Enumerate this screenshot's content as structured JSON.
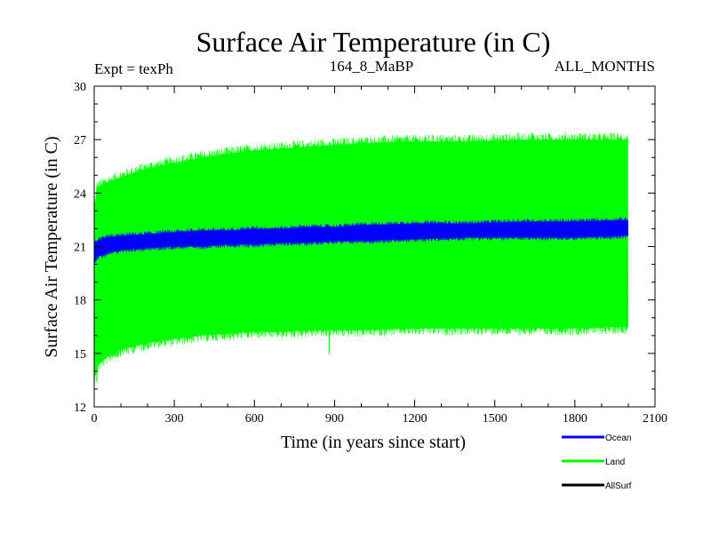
{
  "chart_data": {
    "type": "line",
    "title": "Surface Air Temperature (in C)",
    "subtitle_left": "Expt = texPh",
    "subtitle_center": "164_8_MaBP",
    "subtitle_right": "ALL_MONTHS",
    "xlabel": "Time (in years since start)",
    "ylabel": "Surface Air Temperature (in C)",
    "xlim": [
      0,
      2100
    ],
    "ylim": [
      12,
      30
    ],
    "x_ticks": [
      "0",
      "300",
      "600",
      "900",
      "1200",
      "1500",
      "1800",
      "2100"
    ],
    "y_ticks": [
      "12",
      "15",
      "18",
      "21",
      "24",
      "27",
      "30"
    ],
    "colors": {
      "Ocean": "#0000ff",
      "Land": "#00ff00",
      "AllSurf": "#000000"
    },
    "series": [
      {
        "name": "Land",
        "kind": "band",
        "x": [
          0,
          10,
          50,
          100,
          200,
          300,
          400,
          500,
          600,
          700,
          800,
          900,
          1000,
          1200,
          1400,
          1600,
          1800,
          2000
        ],
        "upper": [
          23.0,
          24.3,
          24.6,
          24.9,
          25.4,
          25.7,
          26.0,
          26.2,
          26.4,
          26.5,
          26.6,
          26.7,
          26.8,
          26.9,
          26.9,
          27.0,
          27.0,
          27.0
        ],
        "lower": [
          13.8,
          14.3,
          14.8,
          15.2,
          15.6,
          15.8,
          16.0,
          16.1,
          16.2,
          16.2,
          16.3,
          16.3,
          16.3,
          16.4,
          16.4,
          16.4,
          16.4,
          16.5
        ],
        "peak_upper": 27.4,
        "peak_lower": 13.4
      },
      {
        "name": "Ocean",
        "kind": "band",
        "x": [
          0,
          10,
          50,
          100,
          200,
          300,
          400,
          500,
          600,
          700,
          800,
          900,
          1000,
          1200,
          1400,
          1600,
          1800,
          2000
        ],
        "upper": [
          21.2,
          21.3,
          21.5,
          21.6,
          21.7,
          21.8,
          21.9,
          21.9,
          22.0,
          22.0,
          22.1,
          22.1,
          22.2,
          22.3,
          22.3,
          22.4,
          22.4,
          22.5
        ],
        "lower": [
          20.0,
          20.4,
          20.6,
          20.8,
          20.9,
          21.0,
          21.0,
          21.1,
          21.1,
          21.2,
          21.2,
          21.3,
          21.3,
          21.4,
          21.5,
          21.5,
          21.5,
          21.6
        ]
      },
      {
        "name": "AllSurf",
        "kind": "line",
        "x": [],
        "values": []
      }
    ],
    "legend": [
      {
        "name": "Ocean",
        "label": "Ocean"
      },
      {
        "name": "Land",
        "label": "Land"
      },
      {
        "name": "AllSurf",
        "label": "AllSurf"
      }
    ]
  }
}
